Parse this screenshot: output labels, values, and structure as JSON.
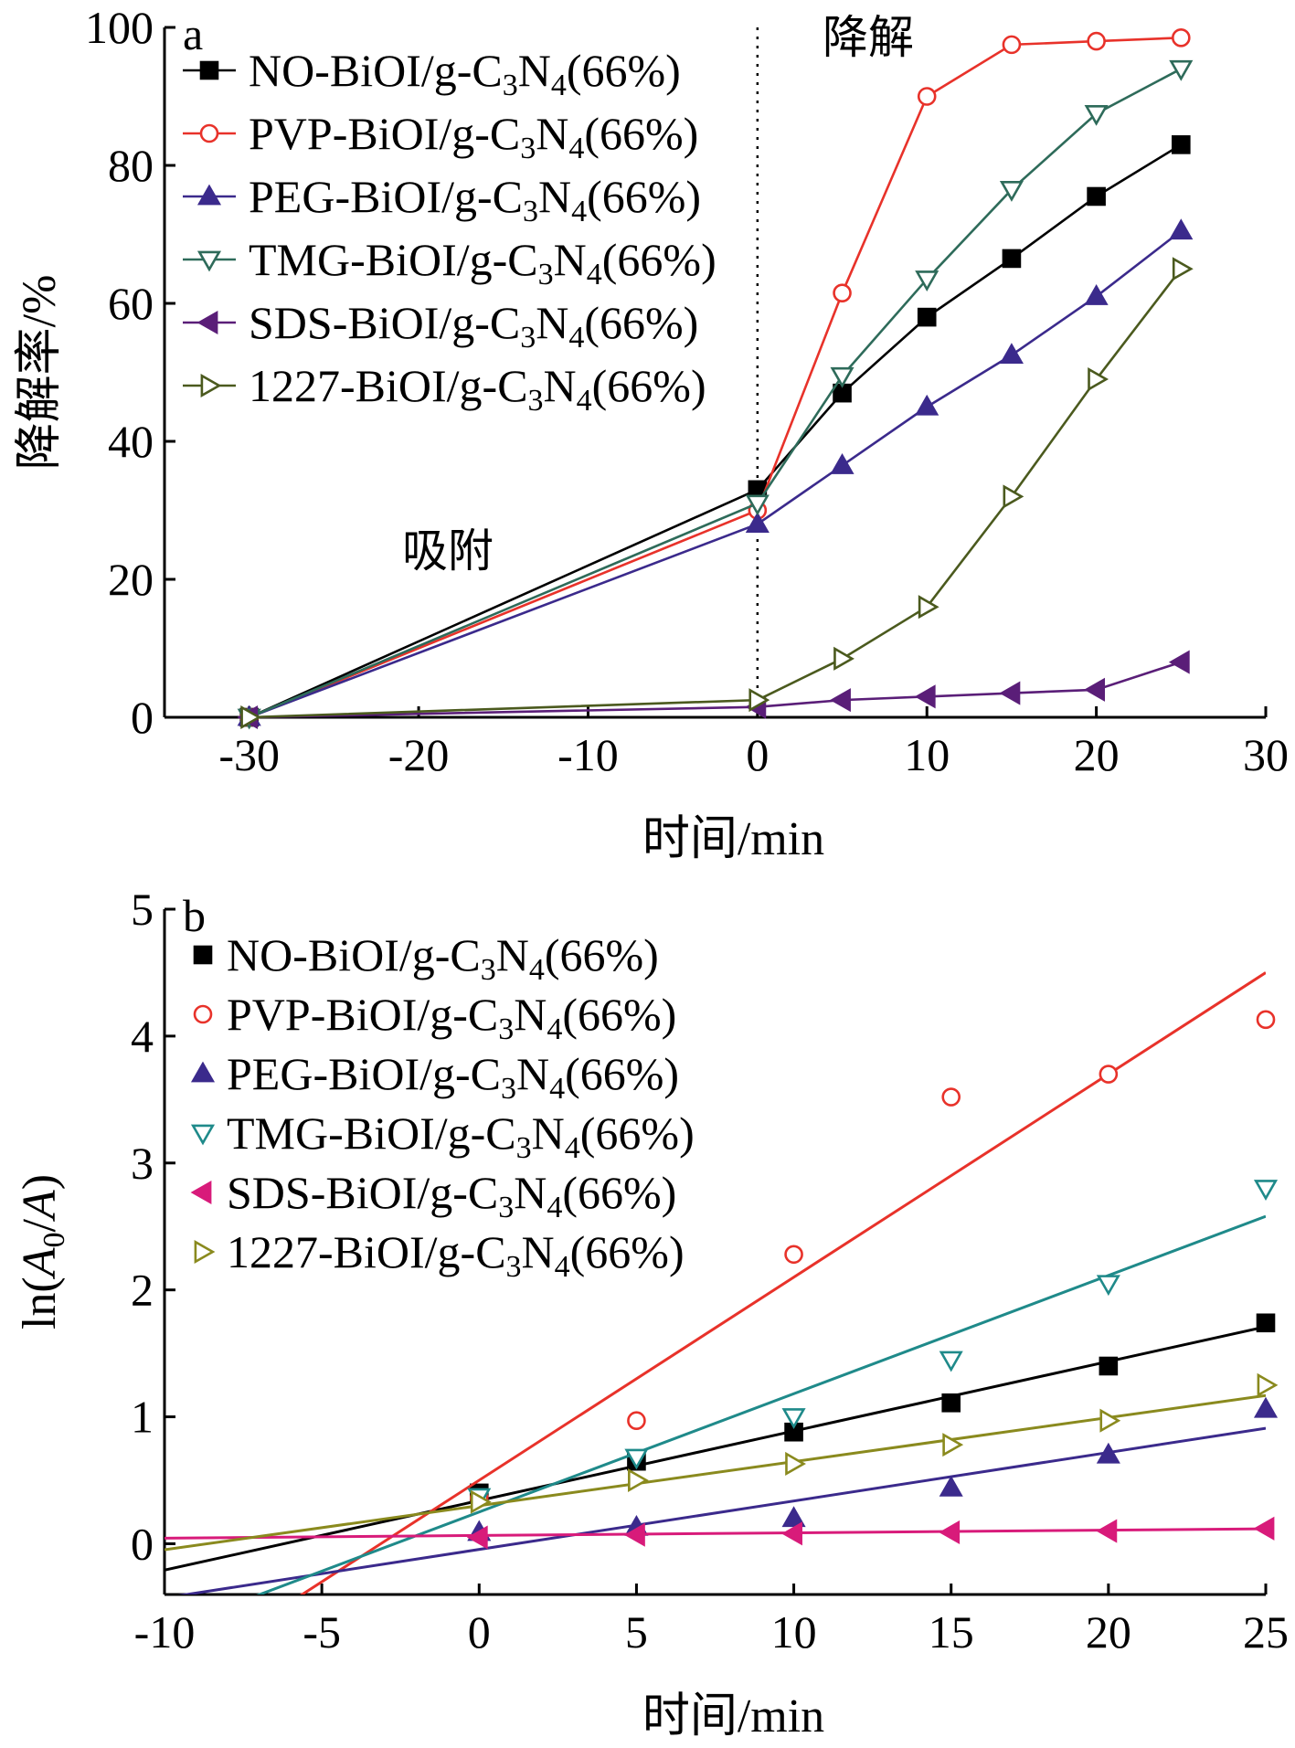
{
  "chart_data": [
    {
      "id": "a",
      "type": "line",
      "panel_label": "a",
      "xlabel": "时间/min",
      "ylabel": "降解率/%",
      "xlim": [
        -35,
        30
      ],
      "ylim": [
        0,
        100
      ],
      "xticks": [
        -30,
        -20,
        -10,
        0,
        10,
        20,
        30
      ],
      "yticks": [
        0,
        20,
        40,
        60,
        80,
        100
      ],
      "annotations": [
        "降解",
        "吸附"
      ],
      "divider_x": 0,
      "legend_position": "top-left",
      "series": [
        {
          "name": "NO-BiOI/g-C3N4(66%)",
          "label_main": "NO-BiOI/g-C",
          "label_sub1": "3",
          "label_mid": "N",
          "label_sub2": "4",
          "label_tail": "(66%)",
          "marker": "square-filled",
          "color": "#000000",
          "x": [
            -30,
            0,
            5,
            10,
            15,
            20,
            25
          ],
          "y": [
            0,
            33,
            47,
            58,
            66.5,
            75.5,
            83
          ]
        },
        {
          "name": "PVP-BiOI/g-C3N4(66%)",
          "label_main": "PVP-BiOI/g-C",
          "label_sub1": "3",
          "label_mid": "N",
          "label_sub2": "4",
          "label_tail": "(66%)",
          "marker": "circle-open",
          "color": "#e8322a",
          "x": [
            -30,
            0,
            5,
            10,
            15,
            20,
            25
          ],
          "y": [
            0,
            30,
            61.5,
            90,
            97.5,
            98,
            98.5
          ]
        },
        {
          "name": "PEG-BiOI/g-C3N4(66%)",
          "label_main": "PEG-BiOI/g-C",
          "label_sub1": "3",
          "label_mid": "N",
          "label_sub2": "4",
          "label_tail": "(66%)",
          "marker": "triangle-up-filled",
          "color": "#3b2a8c",
          "x": [
            -30,
            0,
            5,
            10,
            15,
            20,
            25
          ],
          "y": [
            0,
            28,
            36.5,
            45,
            52.5,
            61,
            70.5
          ]
        },
        {
          "name": "TMG-BiOI/g-C3N4(66%)",
          "label_main": "TMG-BiOI/g-C",
          "label_sub1": "3",
          "label_mid": "N",
          "label_sub2": "4",
          "label_tail": "(66%)",
          "marker": "triangle-down-open",
          "color": "#2e6b5a",
          "x": [
            -30,
            0,
            5,
            10,
            15,
            20,
            25
          ],
          "y": [
            0,
            31,
            49.5,
            63.5,
            76.5,
            87.5,
            94
          ]
        },
        {
          "name": "SDS-BiOI/g-C3N4(66%)",
          "label_main": "SDS-BiOI/g-C",
          "label_sub1": "3",
          "label_mid": "N",
          "label_sub2": "4",
          "label_tail": "(66%)",
          "marker": "triangle-left-filled",
          "color": "#5a1e78",
          "x": [
            -30,
            0,
            5,
            10,
            15,
            20,
            25
          ],
          "y": [
            0,
            1.5,
            2.5,
            3,
            3.5,
            4,
            8
          ]
        },
        {
          "name": "1227-BiOI/g-C3N4(66%)",
          "label_main": "1227-BiOI/g-C",
          "label_sub1": "3",
          "label_mid": "N",
          "label_sub2": "4",
          "label_tail": "(66%)",
          "marker": "triangle-right-open",
          "color": "#4b5a1e",
          "x": [
            -30,
            0,
            5,
            10,
            15,
            20,
            25
          ],
          "y": [
            0,
            2.5,
            8.5,
            16,
            32,
            49,
            65
          ]
        }
      ]
    },
    {
      "id": "b",
      "type": "scatter",
      "panel_label": "b",
      "xlabel": "时间/min",
      "ylabel_prefix": "ln(",
      "ylabel_a0": "A",
      "ylabel_sub": "0",
      "ylabel_slash": "/",
      "ylabel_a": "A",
      "ylabel_suffix": ")",
      "xlim": [
        -10,
        25
      ],
      "ylim": [
        -0.4,
        5
      ],
      "xticks": [
        -10,
        -5,
        0,
        5,
        10,
        15,
        20,
        25
      ],
      "yticks": [
        0,
        1,
        2,
        3,
        4,
        5
      ],
      "legend_position": "top-left",
      "series": [
        {
          "name": "NO-BiOI/g-C3N4(66%)",
          "label_main": "NO-BiOI/g-C",
          "label_sub1": "3",
          "label_mid": "N",
          "label_sub2": "4",
          "label_tail": "(66%)",
          "marker": "square-filled",
          "color": "#000000",
          "x": [
            0,
            5,
            10,
            15,
            20,
            25
          ],
          "y": [
            0.4,
            0.65,
            0.88,
            1.11,
            1.4,
            1.74
          ],
          "fit": {
            "slope": 0.0548,
            "intercept": 0.34
          }
        },
        {
          "name": "PVP-BiOI/g-C3N4(66%)",
          "label_main": "PVP-BiOI/g-C",
          "label_sub1": "3",
          "label_mid": "N",
          "label_sub2": "4",
          "label_tail": "(66%)",
          "marker": "circle-open",
          "color": "#e8322a",
          "x": [
            0,
            5,
            10,
            15,
            20,
            25
          ],
          "y": [
            0.36,
            0.97,
            2.28,
            3.52,
            3.7,
            4.13
          ],
          "fit": {
            "slope": 0.16,
            "intercept": 0.5
          }
        },
        {
          "name": "PEG-BiOI/g-C3N4(66%)",
          "label_main": "PEG-BiOI/g-C",
          "label_sub1": "3",
          "label_mid": "N",
          "label_sub2": "4",
          "label_tail": "(66%)",
          "marker": "triangle-up-filled",
          "color": "#3b2a8c",
          "x": [
            0,
            5,
            10,
            15,
            20,
            25
          ],
          "y": [
            0.09,
            0.13,
            0.2,
            0.44,
            0.7,
            1.06
          ],
          "fit": {
            "slope": 0.0382,
            "intercept": -0.045
          }
        },
        {
          "name": "TMG-BiOI/g-C3N4(66%)",
          "label_main": "TMG-BiOI/g-C",
          "label_sub1": "3",
          "label_mid": "N",
          "label_sub2": "4",
          "label_tail": "(66%)",
          "marker": "triangle-down-open",
          "color": "#1f8a8a",
          "x": [
            0,
            5,
            10,
            15,
            20,
            25
          ],
          "y": [
            0.37,
            0.68,
            1.0,
            1.45,
            2.05,
            2.8
          ],
          "fit": {
            "slope": 0.0932,
            "intercept": 0.25
          }
        },
        {
          "name": "SDS-BiOI/g-C3N4(66%)",
          "label_main": "SDS-BiOI/g-C",
          "label_sub1": "3",
          "label_mid": "N",
          "label_sub2": "4",
          "label_tail": "(66%)",
          "marker": "triangle-left-filled",
          "color": "#d81b7a",
          "x": [
            0,
            5,
            10,
            15,
            20,
            25
          ],
          "y": [
            0.05,
            0.07,
            0.08,
            0.09,
            0.1,
            0.12
          ],
          "fit": {
            "slope": 0.0021,
            "intercept": 0.065
          }
        },
        {
          "name": "1227-BiOI/g-C3N4(66%)",
          "label_main": "1227-BiOI/g-C",
          "label_sub1": "3",
          "label_mid": "N",
          "label_sub2": "4",
          "label_tail": "(66%)",
          "marker": "triangle-right-open",
          "color": "#8a8a1e",
          "x": [
            0,
            5,
            10,
            15,
            20,
            25
          ],
          "y": [
            0.33,
            0.5,
            0.63,
            0.78,
            0.97,
            1.25
          ],
          "fit": {
            "slope": 0.0347,
            "intercept": 0.3
          }
        }
      ]
    }
  ]
}
